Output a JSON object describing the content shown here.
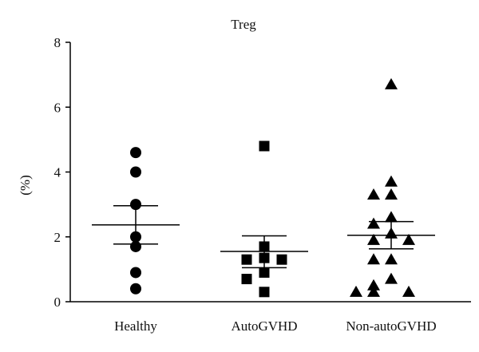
{
  "chart_data": {
    "type": "scatter",
    "title": "Treg",
    "ylabel": "(%)",
    "xlabel": "",
    "ylim": [
      0,
      8
    ],
    "yticks": [
      0,
      2,
      4,
      6,
      8
    ],
    "ytick_labels": [
      "0",
      "2",
      "4",
      "6",
      "8"
    ],
    "grid": false,
    "categories": [
      "Healthy",
      "AutoGVHD",
      "Non-autoGVHD"
    ],
    "colors": {
      "marker": "#000000",
      "axis": "#000000"
    },
    "groups": [
      {
        "category": "Healthy",
        "marker": "circle",
        "values": [
          4.6,
          4.0,
          3.0,
          2.0,
          1.7,
          0.9,
          0.4
        ],
        "mean": 2.37,
        "sem_upper": 2.96,
        "sem_lower": 1.78
      },
      {
        "category": "AutoGVHD",
        "marker": "square",
        "values": [
          4.8,
          1.7,
          1.35,
          1.3,
          1.3,
          0.9,
          0.7,
          0.3
        ],
        "mean": 1.55,
        "sem_upper": 2.03,
        "sem_lower": 1.05
      },
      {
        "category": "Non-autoGVHD",
        "marker": "triangle",
        "values": [
          6.7,
          3.7,
          3.3,
          3.3,
          2.6,
          2.4,
          2.1,
          1.9,
          1.9,
          1.3,
          1.3,
          0.7,
          0.5,
          0.3,
          0.3,
          0.3
        ],
        "mean": 2.05,
        "sem_upper": 2.47,
        "sem_lower": 1.63
      }
    ]
  }
}
